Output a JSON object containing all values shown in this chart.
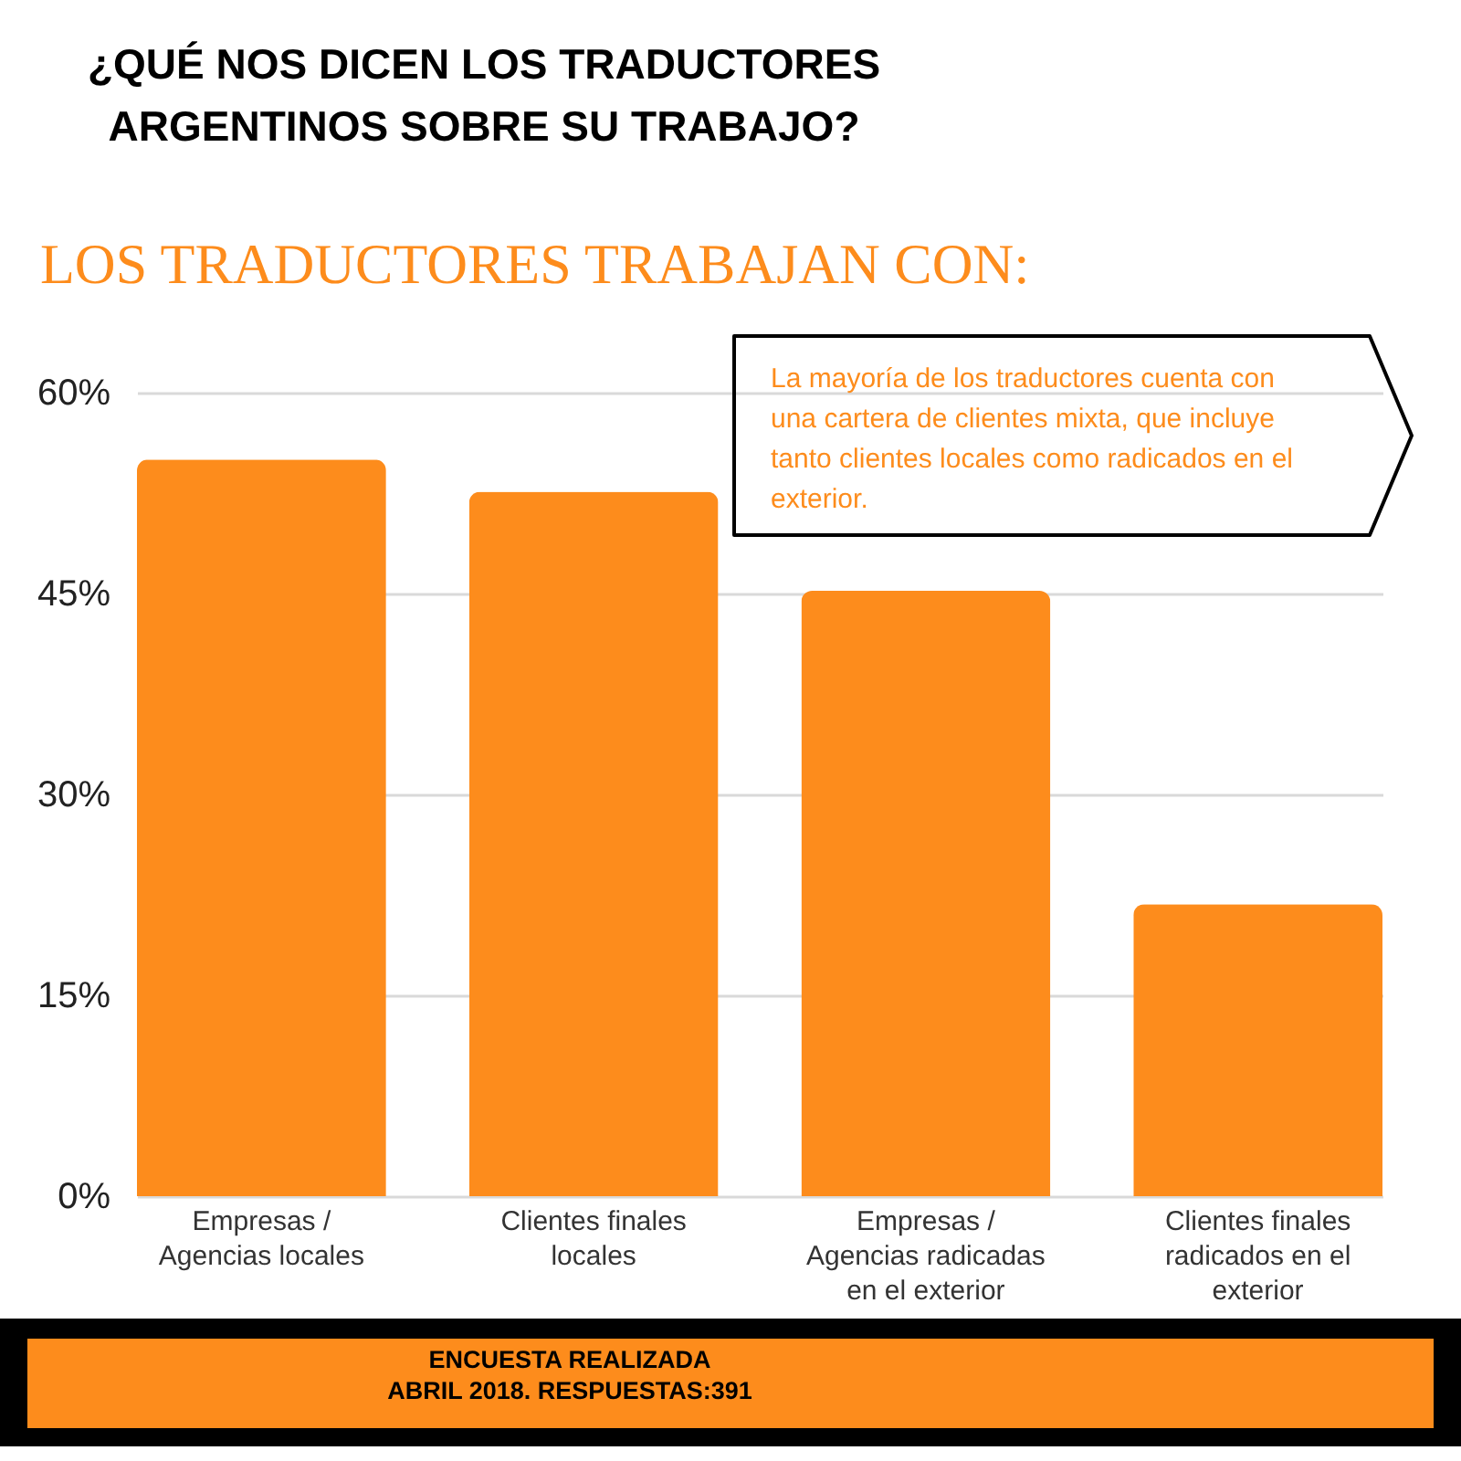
{
  "chart_data": {
    "type": "bar",
    "title": "¿QUÉ NOS DICEN LOS TRADUCTORES ARGENTINOS SOBRE SU TRABAJO?",
    "subtitle": "LOS TRADUCTORES TRABAJAN CON:",
    "categories": [
      "Empresas / Agencias locales",
      "Clientes finales locales",
      "Empresas / Agencias radicadas en el exterior",
      "Clientes finales radicados en el exterior"
    ],
    "values": [
      55,
      52.6,
      45.2,
      21.8
    ],
    "color": "#fd8c1c",
    "ylim": [
      0,
      60
    ],
    "yticks": [
      {
        "value": 0,
        "label": "0%"
      },
      {
        "value": 15,
        "label": "15%"
      },
      {
        "value": 30,
        "label": "30%"
      },
      {
        "value": 45,
        "label": "45%"
      },
      {
        "value": 60,
        "label": "60%"
      }
    ],
    "grid": "y",
    "annotations": [
      "La mayoría de los traductores cuenta con una cartera de clientes mixta, que incluye tanto clientes locales como radicados en el exterior.",
      "ENCUESTA REALIZADA",
      "ABRIL 2018. RESPUESTAS:391"
    ]
  }
}
